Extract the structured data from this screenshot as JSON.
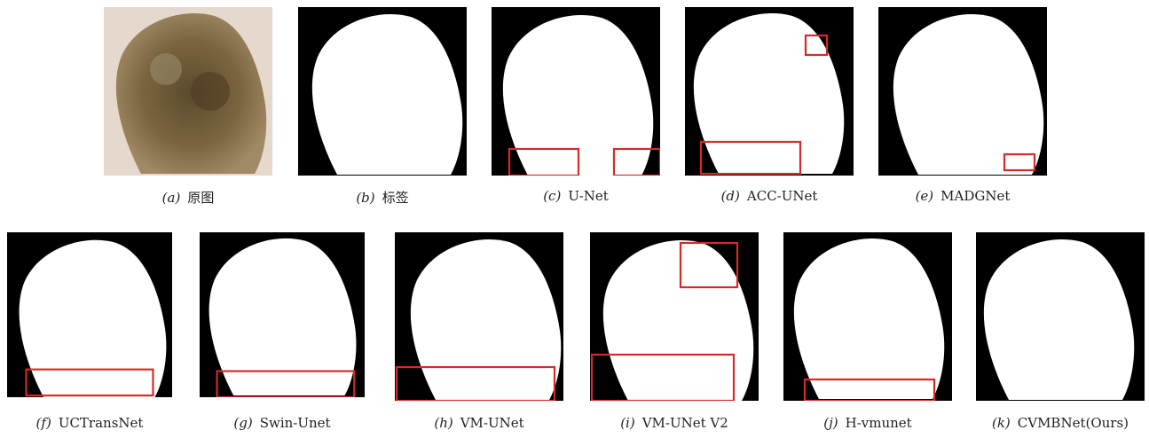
{
  "panels": [
    {
      "tag": "(a)",
      "name": "原图"
    },
    {
      "tag": "(b)",
      "name": "标签"
    },
    {
      "tag": "(c)",
      "name": "U-Net"
    },
    {
      "tag": "(d)",
      "name": "ACC-UNet"
    },
    {
      "tag": "(e)",
      "name": "MADGNet"
    },
    {
      "tag": "(f)",
      "name": "UCTransNet"
    },
    {
      "tag": "(g)",
      "name": "Swin-Unet"
    },
    {
      "tag": "(h)",
      "name": "VM-UNet"
    },
    {
      "tag": "(i)",
      "name": "VM-UNet V2"
    },
    {
      "tag": "(j)",
      "name": "H-vmunet"
    },
    {
      "tag": "(k)",
      "name": "CVMBNet(Ours)"
    }
  ]
}
